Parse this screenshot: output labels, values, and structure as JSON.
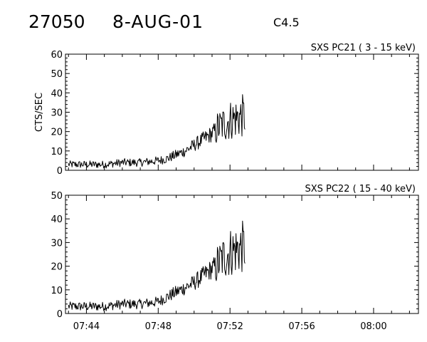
{
  "header": {
    "event_id": "27050",
    "date": "8-AUG-01",
    "goes_class": "C4.5"
  },
  "chart_data": [
    {
      "type": "line",
      "title": "SXS PC21  (  3 - 15 keV)",
      "xlabel": "",
      "ylabel": "CTS/SEC",
      "x_time_range": [
        "07:42:50",
        "08:02:30"
      ],
      "ylim": [
        0,
        60
      ],
      "y_ticks": [
        0,
        10,
        20,
        30,
        40,
        50,
        60
      ],
      "x_tick_labels": [],
      "grid": false,
      "series": [
        {
          "x": [
            "07:43:00",
            "07:44:00",
            "07:45:00",
            "07:46:00",
            "07:47:00",
            "07:48:00",
            "07:48:30",
            "07:49:00",
            "07:49:30",
            "07:50:00",
            "07:50:30",
            "07:51:00",
            "07:51:20",
            "07:51:40",
            "07:52:00",
            "07:52:20",
            "07:52:40",
            "07:52:50"
          ],
          "values": [
            3,
            3,
            3,
            4,
            4,
            5,
            6,
            8,
            10,
            13,
            16,
            19,
            22,
            24,
            26,
            27,
            28,
            28
          ]
        }
      ]
    },
    {
      "type": "line",
      "title": "SXS PC22  ( 15 - 40 keV)",
      "xlabel": "",
      "ylabel": "",
      "x_time_range": [
        "07:42:50",
        "08:02:30"
      ],
      "ylim": [
        0,
        50
      ],
      "y_ticks": [
        0,
        10,
        20,
        30,
        40,
        50
      ],
      "x_tick_labels": [
        "07:44",
        "07:48",
        "07:52",
        "07:56",
        "08:00"
      ],
      "grid": false,
      "series": [
        {
          "x": [
            "07:43:00",
            "07:44:00",
            "07:45:00",
            "07:46:00",
            "07:47:00",
            "07:48:00",
            "07:48:30",
            "07:49:00",
            "07:49:30",
            "07:50:00",
            "07:50:30",
            "07:51:00",
            "07:51:20",
            "07:51:40",
            "07:52:00",
            "07:52:20",
            "07:52:40",
            "07:52:50"
          ],
          "values": [
            3,
            3,
            3,
            4,
            4,
            5,
            7,
            9,
            11,
            13,
            16,
            19,
            21,
            24,
            26,
            27,
            28,
            28
          ]
        }
      ]
    }
  ]
}
